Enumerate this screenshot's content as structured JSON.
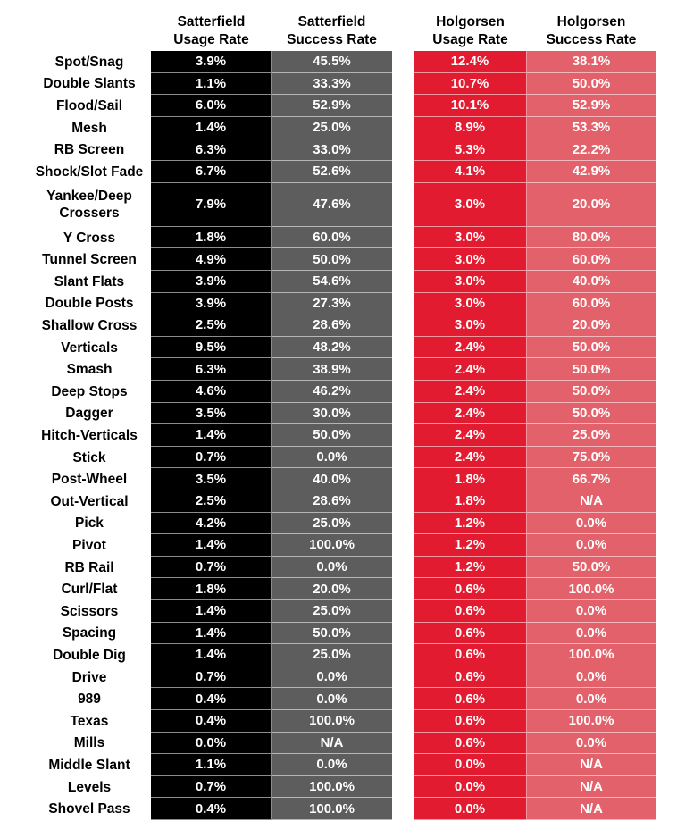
{
  "chart_data": {
    "type": "table",
    "columns": [
      "Satterfield\nUsage Rate",
      "Satterfield\nSuccess Rate",
      "Holgorsen\nUsage Rate",
      "Holgorsen\nSuccess Rate"
    ],
    "column_colors": [
      "#000000",
      "#5d5d5d",
      "#e31b30",
      "#e2616a"
    ],
    "rows": [
      {
        "label": "Spot/Snag",
        "values": [
          "3.9%",
          "45.5%",
          "12.4%",
          "38.1%"
        ]
      },
      {
        "label": "Double Slants",
        "values": [
          "1.1%",
          "33.3%",
          "10.7%",
          "50.0%"
        ]
      },
      {
        "label": "Flood/Sail",
        "values": [
          "6.0%",
          "52.9%",
          "10.1%",
          "52.9%"
        ]
      },
      {
        "label": "Mesh",
        "values": [
          "1.4%",
          "25.0%",
          "8.9%",
          "53.3%"
        ]
      },
      {
        "label": "RB Screen",
        "values": [
          "6.3%",
          "33.0%",
          "5.3%",
          "22.2%"
        ]
      },
      {
        "label": "Shock/Slot Fade",
        "values": [
          "6.7%",
          "52.6%",
          "4.1%",
          "42.9%"
        ]
      },
      {
        "label": "Yankee/Deep\nCrossers",
        "values": [
          "7.9%",
          "47.6%",
          "3.0%",
          "20.0%"
        ]
      },
      {
        "label": "Y Cross",
        "values": [
          "1.8%",
          "60.0%",
          "3.0%",
          "80.0%"
        ]
      },
      {
        "label": "Tunnel Screen",
        "values": [
          "4.9%",
          "50.0%",
          "3.0%",
          "60.0%"
        ]
      },
      {
        "label": "Slant Flats",
        "values": [
          "3.9%",
          "54.6%",
          "3.0%",
          "40.0%"
        ]
      },
      {
        "label": "Double Posts",
        "values": [
          "3.9%",
          "27.3%",
          "3.0%",
          "60.0%"
        ]
      },
      {
        "label": "Shallow Cross",
        "values": [
          "2.5%",
          "28.6%",
          "3.0%",
          "20.0%"
        ]
      },
      {
        "label": "Verticals",
        "values": [
          "9.5%",
          "48.2%",
          "2.4%",
          "50.0%"
        ]
      },
      {
        "label": "Smash",
        "values": [
          "6.3%",
          "38.9%",
          "2.4%",
          "50.0%"
        ]
      },
      {
        "label": "Deep Stops",
        "values": [
          "4.6%",
          "46.2%",
          "2.4%",
          "50.0%"
        ]
      },
      {
        "label": "Dagger",
        "values": [
          "3.5%",
          "30.0%",
          "2.4%",
          "50.0%"
        ]
      },
      {
        "label": "Hitch-Verticals",
        "values": [
          "1.4%",
          "50.0%",
          "2.4%",
          "25.0%"
        ]
      },
      {
        "label": "Stick",
        "values": [
          "0.7%",
          "0.0%",
          "2.4%",
          "75.0%"
        ]
      },
      {
        "label": "Post-Wheel",
        "values": [
          "3.5%",
          "40.0%",
          "1.8%",
          "66.7%"
        ]
      },
      {
        "label": "Out-Vertical",
        "values": [
          "2.5%",
          "28.6%",
          "1.8%",
          "N/A"
        ]
      },
      {
        "label": "Pick",
        "values": [
          "4.2%",
          "25.0%",
          "1.2%",
          "0.0%"
        ]
      },
      {
        "label": "Pivot",
        "values": [
          "1.4%",
          "100.0%",
          "1.2%",
          "0.0%"
        ]
      },
      {
        "label": "RB Rail",
        "values": [
          "0.7%",
          "0.0%",
          "1.2%",
          "50.0%"
        ]
      },
      {
        "label": "Curl/Flat",
        "values": [
          "1.8%",
          "20.0%",
          "0.6%",
          "100.0%"
        ]
      },
      {
        "label": "Scissors",
        "values": [
          "1.4%",
          "25.0%",
          "0.6%",
          "0.0%"
        ]
      },
      {
        "label": "Spacing",
        "values": [
          "1.4%",
          "50.0%",
          "0.6%",
          "0.0%"
        ]
      },
      {
        "label": "Double Dig",
        "values": [
          "1.4%",
          "25.0%",
          "0.6%",
          "100.0%"
        ]
      },
      {
        "label": "Drive",
        "values": [
          "0.7%",
          "0.0%",
          "0.6%",
          "0.0%"
        ]
      },
      {
        "label": "989",
        "values": [
          "0.4%",
          "0.0%",
          "0.6%",
          "0.0%"
        ]
      },
      {
        "label": "Texas",
        "values": [
          "0.4%",
          "100.0%",
          "0.6%",
          "100.0%"
        ]
      },
      {
        "label": "Mills",
        "values": [
          "0.0%",
          "N/A",
          "0.6%",
          "0.0%"
        ]
      },
      {
        "label": "Middle Slant",
        "values": [
          "1.1%",
          "0.0%",
          "0.0%",
          "N/A"
        ]
      },
      {
        "label": "Levels",
        "values": [
          "0.7%",
          "100.0%",
          "0.0%",
          "N/A"
        ]
      },
      {
        "label": "Shovel Pass",
        "values": [
          "0.4%",
          "100.0%",
          "0.0%",
          "N/A"
        ]
      }
    ]
  }
}
